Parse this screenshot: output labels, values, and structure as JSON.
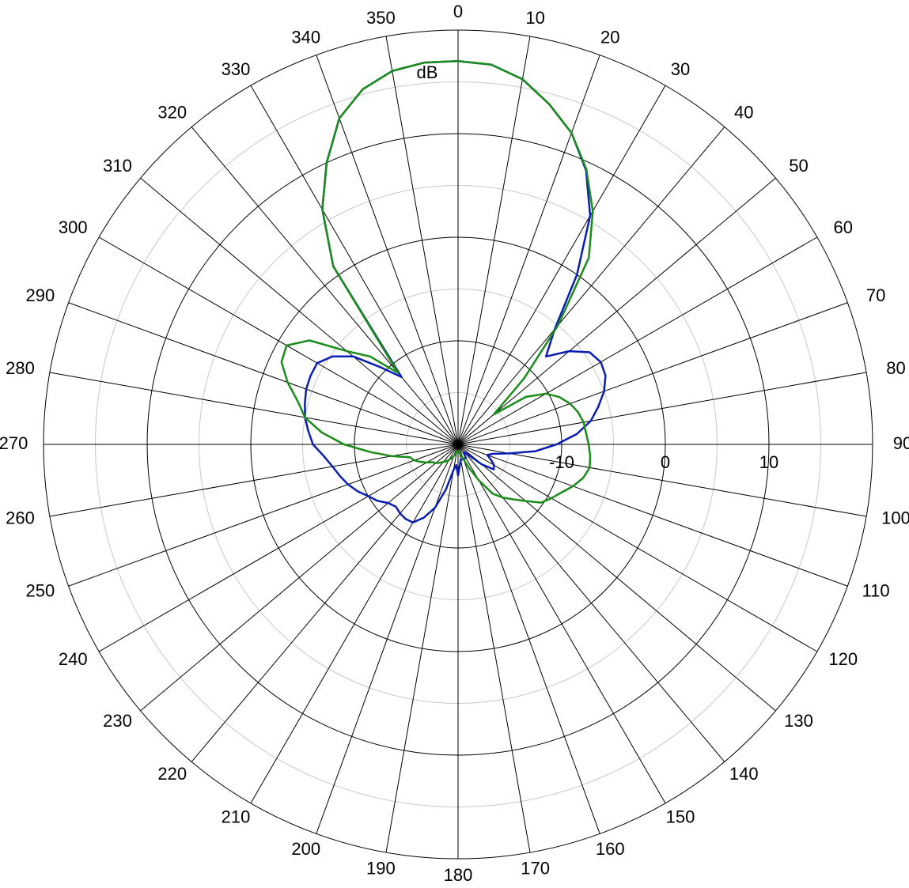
{
  "chart_data": {
    "type": "polar",
    "r_label": "dB",
    "rlim": [
      -20,
      20
    ],
    "rticks": [
      -10,
      0,
      10
    ],
    "rminor": [
      -15,
      -5,
      5,
      15
    ],
    "thetaticks": [
      0,
      10,
      20,
      30,
      40,
      50,
      60,
      70,
      80,
      90,
      100,
      110,
      120,
      130,
      140,
      150,
      160,
      170,
      180,
      190,
      200,
      210,
      220,
      230,
      240,
      250,
      260,
      270,
      280,
      290,
      300,
      310,
      320,
      330,
      340,
      350
    ],
    "theta": [
      0,
      5,
      10,
      15,
      20,
      25,
      30,
      35,
      40,
      45,
      50,
      55,
      60,
      65,
      70,
      75,
      80,
      85,
      90,
      95,
      100,
      105,
      110,
      115,
      120,
      125,
      130,
      135,
      140,
      145,
      150,
      155,
      160,
      165,
      170,
      175,
      180,
      185,
      190,
      195,
      200,
      205,
      210,
      215,
      220,
      225,
      230,
      235,
      240,
      245,
      250,
      255,
      260,
      265,
      270,
      275,
      280,
      285,
      290,
      295,
      300,
      305,
      310,
      315,
      320,
      325,
      330,
      335,
      340,
      345,
      350,
      355
    ],
    "series": [
      {
        "color": "#0a1eb4",
        "values": [
          17,
          16.8,
          15.8,
          14,
          12,
          9.2,
          5.5,
          0,
          -5.5,
          -8,
          -6,
          -4.5,
          -4.1,
          -4.3,
          -5,
          -6,
          -7,
          -8.5,
          -10.5,
          -12.5,
          -15,
          -16.5,
          -17,
          -16.5,
          -16,
          -15.8,
          -17,
          -18.5,
          -19,
          -19,
          -18.5,
          -18.5,
          -18.5,
          -18.5,
          -18.5,
          -18,
          -17,
          -18,
          -17.5,
          -15.5,
          -13.5,
          -12.2,
          -11.3,
          -11.2,
          -11.3,
          -11.5,
          -11.2,
          -10.5,
          -10,
          -9.3,
          -8.7,
          -8.2,
          -7.7,
          -7,
          -6,
          -5.5,
          -5,
          -4.7,
          -4.4,
          -4.3,
          -4.3,
          -5.2,
          -6.8,
          -9.5,
          -11.5,
          1,
          6.2,
          10,
          13.5,
          15.5,
          16.6,
          17
        ]
      },
      {
        "color": "#1a8c1a",
        "values": [
          17,
          16.8,
          15.8,
          14,
          12,
          9.3,
          6,
          2,
          -5,
          -11,
          -15.5,
          -12,
          -10.2,
          -9.2,
          -8.5,
          -8,
          -7.7,
          -7.6,
          -7.4,
          -7.2,
          -7.1,
          -7.5,
          -8.2,
          -9,
          -9.6,
          -10.2,
          -11.5,
          -12.5,
          -13.3,
          -14.2,
          -16,
          -17.5,
          -18.5,
          -19,
          -19.2,
          -19.3,
          -19.3,
          -19.3,
          -19.2,
          -19,
          -18.8,
          -18.5,
          -18.3,
          -18,
          -17.8,
          -17.5,
          -17.2,
          -17,
          -16.5,
          -16,
          -15.5,
          -15.2,
          -13.5,
          -11.5,
          -9,
          -6.8,
          -5,
          -4,
          -2.5,
          -1.2,
          -0.9,
          -2.5,
          -6,
          -8,
          -11,
          1,
          6.2,
          10,
          13.5,
          15.5,
          16.6,
          17
        ]
      }
    ]
  }
}
